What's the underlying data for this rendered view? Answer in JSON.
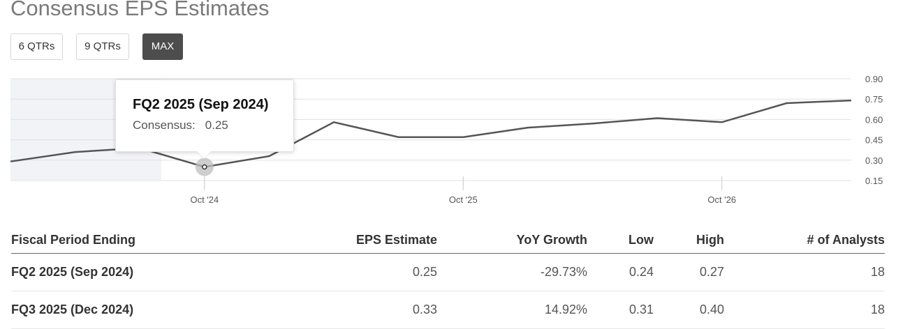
{
  "title": "Consensus EPS Estimates",
  "range_buttons": [
    {
      "label": "6 QTRs",
      "active": false
    },
    {
      "label": "9 QTRs",
      "active": false
    },
    {
      "label": "MAX",
      "active": true
    }
  ],
  "tooltip": {
    "title": "FQ2 2025 (Sep 2024)",
    "label": "Consensus:",
    "value": "0.25"
  },
  "table": {
    "headers": [
      "Fiscal Period Ending",
      "EPS Estimate",
      "YoY Growth",
      "Low",
      "High",
      "# of Analysts"
    ],
    "rows": [
      [
        "FQ2 2025 (Sep 2024)",
        "0.25",
        "-29.73%",
        "0.24",
        "0.27",
        "18"
      ],
      [
        "FQ3 2025 (Dec 2024)",
        "0.33",
        "14.92%",
        "0.31",
        "0.40",
        "18"
      ]
    ]
  },
  "colors": {
    "line": "#555555",
    "shaded_history": "#f2f3f7",
    "grid": "#e0e0e0",
    "active_button": "#4d4d4d",
    "highlight_point": "#bdbdbd"
  },
  "chart_data": {
    "type": "line",
    "title": "",
    "xlabel": "",
    "ylabel": "",
    "x_tick_labels": [
      "Oct '24",
      "Oct '25",
      "Oct '26"
    ],
    "y_tick_labels": [
      "0.90",
      "0.75",
      "0.60",
      "0.45",
      "0.30",
      "0.15"
    ],
    "ylim": [
      0.15,
      0.9
    ],
    "grid": true,
    "legend": "none",
    "shaded_region": "history",
    "series": [
      {
        "values": [
          {
            "x": "2024-01",
            "y": 0.29
          },
          {
            "x": "2024-04",
            "y": 0.36
          },
          {
            "x": "2024-07",
            "y": 0.39
          },
          {
            "x": "2024-10",
            "y": 0.25
          },
          {
            "x": "2025-01",
            "y": 0.33
          },
          {
            "x": "2025-04",
            "y": 0.58
          },
          {
            "x": "2025-07",
            "y": 0.47
          },
          {
            "x": "2025-10",
            "y": 0.47
          },
          {
            "x": "2026-01",
            "y": 0.54
          },
          {
            "x": "2026-04",
            "y": 0.57
          },
          {
            "x": "2026-07",
            "y": 0.61
          },
          {
            "x": "2026-10",
            "y": 0.58
          },
          {
            "x": "2027-01",
            "y": 0.72
          },
          {
            "x": "2027-04",
            "y": 0.74
          }
        ]
      }
    ],
    "highlight": {
      "x": "2024-10",
      "y": 0.25
    }
  }
}
